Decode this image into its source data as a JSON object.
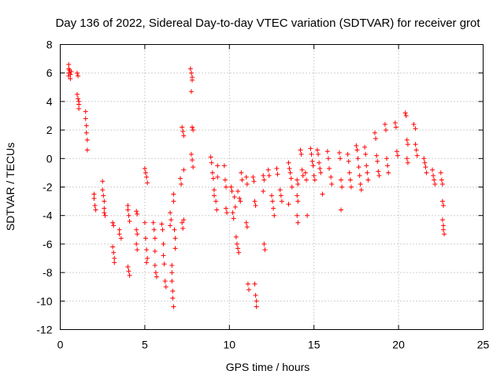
{
  "chart_data": {
    "type": "scatter",
    "title": "Day 136 of 2022, Sidereal Day-to-day VTEC variation (SDTVAR) for receiver grot",
    "xlabel": "GPS time / hours",
    "ylabel": "SDTVAR / TECUs",
    "xlim": [
      0,
      25
    ],
    "ylim": [
      -12,
      8
    ],
    "xticks": [
      0,
      5,
      10,
      15,
      20,
      25
    ],
    "yticks": [
      -12,
      -10,
      -8,
      -6,
      -4,
      -2,
      0,
      2,
      4,
      6,
      8
    ],
    "grid": true,
    "marker": "+",
    "color": "#ff0000",
    "series": [
      {
        "name": "SDTVAR",
        "points": [
          [
            0.5,
            6.6
          ],
          [
            0.5,
            6.3
          ],
          [
            0.5,
            6.0
          ],
          [
            0.5,
            5.8
          ],
          [
            0.55,
            6.2
          ],
          [
            0.6,
            5.9
          ],
          [
            0.6,
            5.6
          ],
          [
            0.65,
            6.1
          ],
          [
            1.0,
            6.0
          ],
          [
            1.05,
            5.8
          ],
          [
            1.0,
            4.5
          ],
          [
            1.05,
            4.2
          ],
          [
            1.1,
            4.0
          ],
          [
            1.1,
            3.8
          ],
          [
            1.1,
            3.5
          ],
          [
            1.5,
            3.3
          ],
          [
            1.5,
            2.8
          ],
          [
            1.55,
            2.3
          ],
          [
            1.55,
            1.8
          ],
          [
            1.6,
            1.3
          ],
          [
            1.6,
            0.6
          ],
          [
            2.0,
            -2.5
          ],
          [
            2.0,
            -2.8
          ],
          [
            2.05,
            -3.3
          ],
          [
            2.1,
            -3.6
          ],
          [
            2.5,
            -1.6
          ],
          [
            2.5,
            -2.2
          ],
          [
            2.55,
            -2.6
          ],
          [
            2.6,
            -3.0
          ],
          [
            2.6,
            -3.5
          ],
          [
            2.6,
            -3.8
          ],
          [
            2.65,
            -4.0
          ],
          [
            3.1,
            -4.5
          ],
          [
            3.15,
            -4.7
          ],
          [
            3.1,
            -6.2
          ],
          [
            3.15,
            -6.6
          ],
          [
            3.2,
            -7.0
          ],
          [
            3.2,
            -7.3
          ],
          [
            3.5,
            -5.0
          ],
          [
            3.5,
            -5.3
          ],
          [
            3.6,
            -5.6
          ],
          [
            4.0,
            -3.3
          ],
          [
            4.0,
            -3.6
          ],
          [
            4.05,
            -4.0
          ],
          [
            4.1,
            -4.4
          ],
          [
            4.0,
            -7.6
          ],
          [
            4.05,
            -7.9
          ],
          [
            4.1,
            -8.2
          ],
          [
            4.5,
            -3.7
          ],
          [
            4.55,
            -3.9
          ],
          [
            4.5,
            -5.0
          ],
          [
            4.55,
            -5.3
          ],
          [
            4.5,
            -6.0
          ],
          [
            4.55,
            -6.4
          ],
          [
            5.0,
            -0.7
          ],
          [
            5.05,
            -1.0
          ],
          [
            5.1,
            -1.3
          ],
          [
            5.15,
            -1.7
          ],
          [
            5.0,
            -4.5
          ],
          [
            5.05,
            -5.6
          ],
          [
            5.1,
            -6.4
          ],
          [
            5.15,
            -7.0
          ],
          [
            5.1,
            -7.3
          ],
          [
            5.5,
            -4.5
          ],
          [
            5.55,
            -5.0
          ],
          [
            5.6,
            -5.6
          ],
          [
            5.6,
            -6.5
          ],
          [
            5.6,
            -7.5
          ],
          [
            5.65,
            -8.0
          ],
          [
            5.7,
            -8.3
          ],
          [
            6.0,
            -4.6
          ],
          [
            6.05,
            -5.0
          ],
          [
            6.1,
            -6.0
          ],
          [
            6.1,
            -6.8
          ],
          [
            6.15,
            -7.4
          ],
          [
            6.2,
            -8.6
          ],
          [
            6.25,
            -9.0
          ],
          [
            6.5,
            -3.8
          ],
          [
            6.55,
            -4.3
          ],
          [
            6.5,
            -4.7
          ],
          [
            6.6,
            -7.5
          ],
          [
            6.6,
            -8.0
          ],
          [
            6.6,
            -8.6
          ],
          [
            6.65,
            -9.3
          ],
          [
            6.65,
            -9.8
          ],
          [
            6.7,
            -10.4
          ],
          [
            6.7,
            -2.5
          ],
          [
            6.7,
            -3.0
          ],
          [
            6.75,
            -5.0
          ],
          [
            6.8,
            -5.6
          ],
          [
            6.8,
            -6.3
          ],
          [
            7.1,
            -1.4
          ],
          [
            7.15,
            -1.8
          ],
          [
            7.2,
            -4.5
          ],
          [
            7.25,
            -4.9
          ],
          [
            7.3,
            -4.3
          ],
          [
            7.2,
            2.2
          ],
          [
            7.25,
            1.9
          ],
          [
            7.3,
            1.6
          ],
          [
            7.3,
            -0.8
          ],
          [
            7.7,
            6.3
          ],
          [
            7.75,
            6.0
          ],
          [
            7.8,
            5.7
          ],
          [
            7.8,
            5.5
          ],
          [
            7.75,
            4.7
          ],
          [
            7.8,
            2.2
          ],
          [
            7.85,
            2.0
          ],
          [
            7.75,
            0.3
          ],
          [
            7.8,
            -0.1
          ],
          [
            7.85,
            -0.6
          ],
          [
            8.9,
            0.1
          ],
          [
            8.95,
            -0.3
          ],
          [
            9.0,
            -1.0
          ],
          [
            9.05,
            -1.4
          ],
          [
            9.1,
            -2.2
          ],
          [
            9.1,
            -2.6
          ],
          [
            9.2,
            -3.0
          ],
          [
            9.25,
            -3.6
          ],
          [
            9.3,
            -0.5
          ],
          [
            9.3,
            -1.3
          ],
          [
            9.7,
            -0.5
          ],
          [
            9.75,
            -1.5
          ],
          [
            9.8,
            -2.0
          ],
          [
            9.8,
            -3.5
          ],
          [
            9.85,
            -3.8
          ],
          [
            10.1,
            -2.0
          ],
          [
            10.15,
            -2.3
          ],
          [
            10.2,
            -3.8
          ],
          [
            10.25,
            -4.2
          ],
          [
            10.3,
            -2.7
          ],
          [
            10.35,
            -3.4
          ],
          [
            10.4,
            -5.5
          ],
          [
            10.45,
            -6.0
          ],
          [
            10.5,
            -6.3
          ],
          [
            10.55,
            -6.6
          ],
          [
            10.5,
            -2.3
          ],
          [
            10.6,
            -2.8
          ],
          [
            10.65,
            -3.0
          ],
          [
            10.7,
            -1.0
          ],
          [
            10.75,
            -1.5
          ],
          [
            11.0,
            -1.3
          ],
          [
            11.05,
            -1.8
          ],
          [
            11.0,
            -4.5
          ],
          [
            11.05,
            -4.8
          ],
          [
            11.1,
            -8.8
          ],
          [
            11.15,
            -9.2
          ],
          [
            11.4,
            -1.3
          ],
          [
            11.45,
            -1.6
          ],
          [
            11.5,
            -3.0
          ],
          [
            11.55,
            -3.3
          ],
          [
            11.5,
            -8.8
          ],
          [
            11.55,
            -9.6
          ],
          [
            11.6,
            -10.0
          ],
          [
            11.6,
            -10.4
          ],
          [
            12.0,
            -1.2
          ],
          [
            12.05,
            -1.5
          ],
          [
            12.0,
            -2.3
          ],
          [
            12.05,
            -6.0
          ],
          [
            12.1,
            -6.4
          ],
          [
            12.3,
            -0.8
          ],
          [
            12.35,
            -1.2
          ],
          [
            12.5,
            -2.6
          ],
          [
            12.55,
            -3.0
          ],
          [
            12.6,
            -3.5
          ],
          [
            12.65,
            -4.0
          ],
          [
            12.8,
            -0.7
          ],
          [
            12.85,
            -1.1
          ],
          [
            13.0,
            -2.2
          ],
          [
            13.05,
            -2.6
          ],
          [
            13.1,
            -3.0
          ],
          [
            13.5,
            -0.3
          ],
          [
            13.55,
            -0.7
          ],
          [
            13.6,
            -1.0
          ],
          [
            13.65,
            -1.4
          ],
          [
            13.7,
            -2.0
          ],
          [
            13.5,
            -3.2
          ],
          [
            14.0,
            -1.5
          ],
          [
            14.05,
            -1.8
          ],
          [
            14.0,
            -2.6
          ],
          [
            14.05,
            -3.0
          ],
          [
            14.0,
            -4.0
          ],
          [
            14.05,
            -4.5
          ],
          [
            14.2,
            0.6
          ],
          [
            14.25,
            0.3
          ],
          [
            14.3,
            -0.8
          ],
          [
            14.35,
            -1.2
          ],
          [
            14.5,
            -1.0
          ],
          [
            14.55,
            -1.5
          ],
          [
            14.6,
            -4.0
          ],
          [
            14.8,
            0.7
          ],
          [
            14.85,
            0.3
          ],
          [
            14.9,
            -0.2
          ],
          [
            14.95,
            -0.5
          ],
          [
            15.0,
            -1.2
          ],
          [
            15.05,
            -1.5
          ],
          [
            15.2,
            0.6
          ],
          [
            15.25,
            0.3
          ],
          [
            15.3,
            -0.3
          ],
          [
            15.35,
            -0.7
          ],
          [
            15.4,
            -1.0
          ],
          [
            15.5,
            -2.5
          ],
          [
            15.8,
            0.5
          ],
          [
            15.85,
            0.0
          ],
          [
            15.9,
            -0.7
          ],
          [
            16.0,
            -1.3
          ],
          [
            16.05,
            -1.8
          ],
          [
            16.5,
            0.4
          ],
          [
            16.55,
            0.0
          ],
          [
            16.6,
            -1.5
          ],
          [
            16.65,
            -2.0
          ],
          [
            16.6,
            -3.6
          ],
          [
            17.0,
            0.3
          ],
          [
            17.05,
            -0.2
          ],
          [
            17.1,
            -1.0
          ],
          [
            17.15,
            -1.5
          ],
          [
            17.2,
            -2.0
          ],
          [
            17.5,
            0.9
          ],
          [
            17.55,
            0.6
          ],
          [
            17.6,
            0.0
          ],
          [
            17.65,
            -0.6
          ],
          [
            17.7,
            -1.2
          ],
          [
            17.75,
            -1.8
          ],
          [
            17.8,
            -2.2
          ],
          [
            18.0,
            0.8
          ],
          [
            18.05,
            0.3
          ],
          [
            18.1,
            -0.5
          ],
          [
            18.15,
            -1.0
          ],
          [
            18.2,
            -1.5
          ],
          [
            18.6,
            1.8
          ],
          [
            18.65,
            1.4
          ],
          [
            18.7,
            0.2
          ],
          [
            18.75,
            -0.2
          ],
          [
            18.8,
            -0.9
          ],
          [
            18.85,
            -1.2
          ],
          [
            19.2,
            2.4
          ],
          [
            19.25,
            2.0
          ],
          [
            19.3,
            0.0
          ],
          [
            19.35,
            -0.5
          ],
          [
            19.4,
            -1.0
          ],
          [
            19.8,
            2.5
          ],
          [
            19.85,
            2.2
          ],
          [
            19.9,
            0.5
          ],
          [
            19.95,
            0.2
          ],
          [
            20.4,
            3.2
          ],
          [
            20.45,
            3.0
          ],
          [
            20.5,
            1.3
          ],
          [
            20.55,
            1.0
          ],
          [
            20.5,
            0.0
          ],
          [
            20.55,
            -0.3
          ],
          [
            20.9,
            2.4
          ],
          [
            21.0,
            2.1
          ],
          [
            21.0,
            1.0
          ],
          [
            21.05,
            0.6
          ],
          [
            21.1,
            0.2
          ],
          [
            21.5,
            0.0
          ],
          [
            21.55,
            -0.3
          ],
          [
            21.6,
            -0.6
          ],
          [
            21.65,
            -1.0
          ],
          [
            22.0,
            -0.8
          ],
          [
            22.05,
            -1.2
          ],
          [
            22.1,
            -1.5
          ],
          [
            22.15,
            -1.8
          ],
          [
            22.5,
            -1.0
          ],
          [
            22.55,
            -1.5
          ],
          [
            22.6,
            -1.8
          ],
          [
            22.6,
            -3.0
          ],
          [
            22.65,
            -3.3
          ],
          [
            22.6,
            -4.3
          ],
          [
            22.65,
            -4.7
          ],
          [
            22.65,
            -5.0
          ],
          [
            22.7,
            -5.3
          ]
        ]
      }
    ]
  }
}
